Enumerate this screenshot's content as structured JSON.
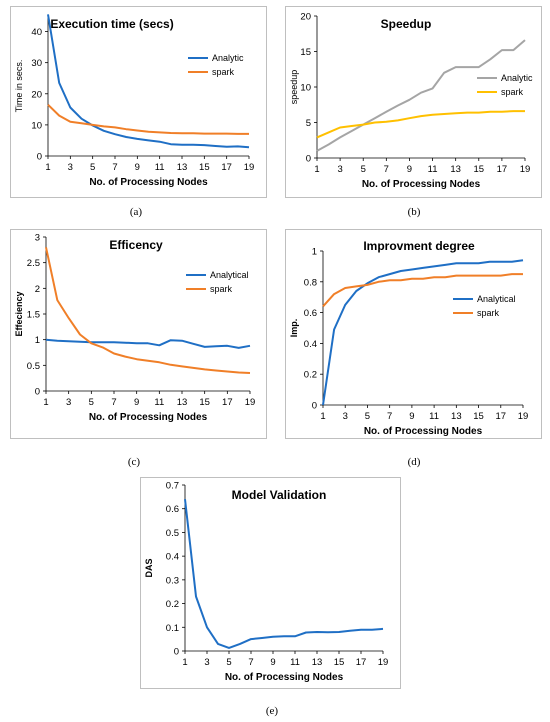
{
  "figure": {
    "captions": [
      "(a)",
      "(b)",
      "(c)",
      "(d)",
      "(e)"
    ]
  },
  "chart_data": [
    {
      "id": "a",
      "type": "line",
      "title": "Execution time (secs)",
      "xlabel": "No. of Processing Nodes",
      "ylabel": "Time in secs.",
      "ylabel_bold": false,
      "x": [
        1,
        2,
        3,
        4,
        5,
        6,
        7,
        8,
        9,
        10,
        11,
        12,
        13,
        14,
        15,
        16,
        17,
        18,
        19
      ],
      "xticks": [
        "1",
        "3",
        "5",
        "7",
        "9",
        "11",
        "13",
        "15",
        "17",
        "19"
      ],
      "xtick_values": [
        1,
        3,
        5,
        7,
        9,
        11,
        13,
        15,
        17,
        19
      ],
      "ylim": [
        0,
        45
      ],
      "yticks": [
        "0",
        "10",
        "20",
        "30",
        "40"
      ],
      "ytick_values": [
        0,
        10,
        20,
        30,
        40
      ],
      "legend_position": "right",
      "series": [
        {
          "name": "Analytic",
          "color": "#1f6fc5",
          "values": [
            45.5,
            23.5,
            15.6,
            12.0,
            9.8,
            8.1,
            7.0,
            6.1,
            5.5,
            5.0,
            4.6,
            3.8,
            3.6,
            3.6,
            3.5,
            3.2,
            3.0,
            3.1,
            2.8
          ]
        },
        {
          "name": "spark",
          "color": "#f07f28",
          "values": [
            16.5,
            13.0,
            11.0,
            10.5,
            10.0,
            9.5,
            9.2,
            8.6,
            8.2,
            7.8,
            7.6,
            7.4,
            7.3,
            7.3,
            7.2,
            7.2,
            7.2,
            7.1,
            7.1
          ]
        }
      ]
    },
    {
      "id": "b",
      "type": "line",
      "title": "Speedup",
      "xlabel": "No. of Processing Nodes",
      "ylabel": "speedup",
      "ylabel_bold": false,
      "x": [
        1,
        2,
        3,
        4,
        5,
        6,
        7,
        8,
        9,
        10,
        11,
        12,
        13,
        14,
        15,
        16,
        17,
        18,
        19
      ],
      "xticks": [
        "1",
        "3",
        "5",
        "7",
        "9",
        "11",
        "13",
        "15",
        "17",
        "19"
      ],
      "xtick_values": [
        1,
        3,
        5,
        7,
        9,
        11,
        13,
        15,
        17,
        19
      ],
      "ylim": [
        0,
        20
      ],
      "yticks": [
        "0",
        "5",
        "10",
        "15",
        "20"
      ],
      "ytick_values": [
        0,
        5,
        10,
        15,
        20
      ],
      "legend_position": "right",
      "series": [
        {
          "name": "Analytic",
          "color": "#a5a5a5",
          "values": [
            1.0,
            1.9,
            2.9,
            3.8,
            4.7,
            5.6,
            6.5,
            7.4,
            8.2,
            9.2,
            9.8,
            12.0,
            12.8,
            12.8,
            12.8,
            13.9,
            15.2,
            15.2,
            16.6
          ]
        },
        {
          "name": "spark",
          "color": "#ffc000",
          "values": [
            2.9,
            3.6,
            4.3,
            4.5,
            4.7,
            5.0,
            5.1,
            5.3,
            5.6,
            5.9,
            6.1,
            6.2,
            6.3,
            6.4,
            6.4,
            6.5,
            6.5,
            6.6,
            6.6
          ]
        }
      ]
    },
    {
      "id": "c",
      "type": "line",
      "title": "Efficency",
      "xlabel": "No. of Processing Nodes",
      "ylabel": "Effeciency",
      "ylabel_bold": true,
      "x": [
        1,
        2,
        3,
        4,
        5,
        6,
        7,
        8,
        9,
        10,
        11,
        12,
        13,
        14,
        15,
        16,
        17,
        18,
        19
      ],
      "xticks": [
        "1",
        "3",
        "5",
        "7",
        "9",
        "11",
        "13",
        "15",
        "17",
        "19"
      ],
      "xtick_values": [
        1,
        3,
        5,
        7,
        9,
        11,
        13,
        15,
        17,
        19
      ],
      "ylim": [
        0,
        3
      ],
      "yticks": [
        "0",
        "0.5",
        "1",
        "1.5",
        "2",
        "2.5",
        "3"
      ],
      "ytick_values": [
        0,
        0.5,
        1,
        1.5,
        2,
        2.5,
        3
      ],
      "legend_position": "right",
      "series": [
        {
          "name": "Analytical",
          "color": "#1f6fc5",
          "values": [
            1.0,
            0.98,
            0.97,
            0.96,
            0.95,
            0.95,
            0.95,
            0.94,
            0.93,
            0.93,
            0.89,
            0.99,
            0.98,
            0.92,
            0.86,
            0.87,
            0.88,
            0.84,
            0.88
          ]
        },
        {
          "name": "spark",
          "color": "#f07f28",
          "values": [
            2.8,
            1.77,
            1.42,
            1.1,
            0.93,
            0.85,
            0.73,
            0.67,
            0.62,
            0.59,
            0.56,
            0.51,
            0.48,
            0.45,
            0.42,
            0.4,
            0.38,
            0.36,
            0.35
          ]
        }
      ]
    },
    {
      "id": "d",
      "type": "line",
      "title": "Improvment degree",
      "xlabel": "No. of Processing Nodes",
      "ylabel": "Imp.",
      "ylabel_bold": true,
      "x": [
        1,
        2,
        3,
        4,
        5,
        6,
        7,
        8,
        9,
        10,
        11,
        12,
        13,
        14,
        15,
        16,
        17,
        18,
        19
      ],
      "xticks": [
        "1",
        "3",
        "5",
        "7",
        "9",
        "11",
        "13",
        "15",
        "17",
        "19"
      ],
      "xtick_values": [
        1,
        3,
        5,
        7,
        9,
        11,
        13,
        15,
        17,
        19
      ],
      "ylim": [
        0,
        1
      ],
      "yticks": [
        "0",
        "0.2",
        "0.4",
        "0.6",
        "0.8",
        "1"
      ],
      "ytick_values": [
        0,
        0.2,
        0.4,
        0.6,
        0.8,
        1
      ],
      "legend_position": "right",
      "series": [
        {
          "name": "Analytical",
          "color": "#1f6fc5",
          "values": [
            0.0,
            0.49,
            0.65,
            0.74,
            0.79,
            0.83,
            0.85,
            0.87,
            0.88,
            0.89,
            0.9,
            0.91,
            0.92,
            0.92,
            0.92,
            0.93,
            0.93,
            0.93,
            0.94
          ]
        },
        {
          "name": "spark",
          "color": "#f07f28",
          "values": [
            0.64,
            0.72,
            0.76,
            0.77,
            0.78,
            0.8,
            0.81,
            0.81,
            0.82,
            0.82,
            0.83,
            0.83,
            0.84,
            0.84,
            0.84,
            0.84,
            0.84,
            0.85,
            0.85
          ]
        }
      ]
    },
    {
      "id": "e",
      "type": "line",
      "title": "Model Validation",
      "xlabel": "No. of Processing Nodes",
      "ylabel": "DAS",
      "ylabel_bold": true,
      "x": [
        1,
        2,
        3,
        4,
        5,
        6,
        7,
        8,
        9,
        10,
        11,
        12,
        13,
        14,
        15,
        16,
        17,
        18,
        19
      ],
      "xticks": [
        "1",
        "3",
        "5",
        "7",
        "9",
        "11",
        "13",
        "15",
        "17",
        "19"
      ],
      "xtick_values": [
        1,
        3,
        5,
        7,
        9,
        11,
        13,
        15,
        17,
        19
      ],
      "ylim": [
        0,
        0.7
      ],
      "yticks": [
        "0",
        "0.1",
        "0.2",
        "0.3",
        "0.4",
        "0.5",
        "0.6",
        "0.7"
      ],
      "ytick_values": [
        0,
        0.1,
        0.2,
        0.3,
        0.4,
        0.5,
        0.6,
        0.7
      ],
      "legend_position": "none",
      "series": [
        {
          "name": "",
          "color": "#1f6fc5",
          "values": [
            0.64,
            0.23,
            0.1,
            0.03,
            0.013,
            0.03,
            0.05,
            0.055,
            0.06,
            0.062,
            0.062,
            0.078,
            0.08,
            0.079,
            0.08,
            0.085,
            0.09,
            0.09,
            0.093
          ]
        }
      ]
    }
  ]
}
